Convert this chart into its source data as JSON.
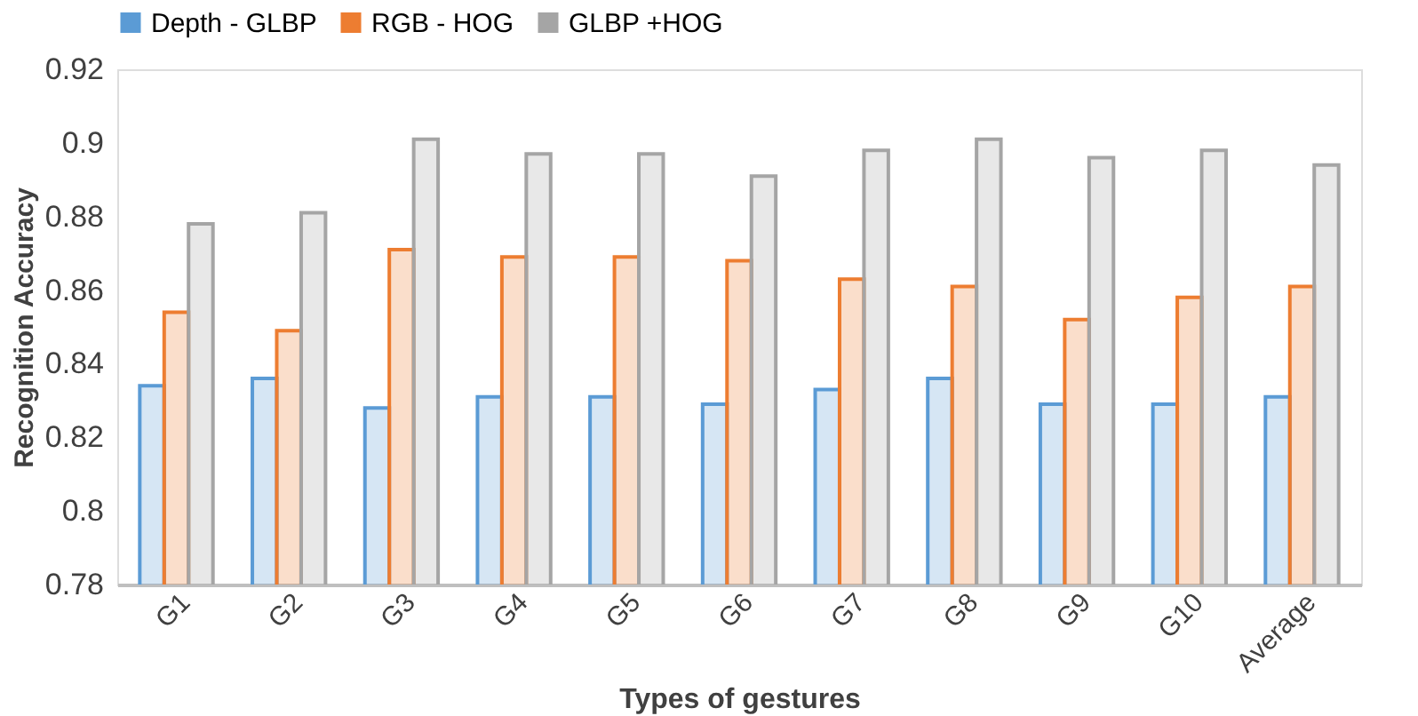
{
  "chart_data": {
    "type": "bar",
    "xlabel": "Types of gestures",
    "ylabel": "Recognition  Accuracy",
    "categories": [
      "G1",
      "G2",
      "G3",
      "G4",
      "G5",
      "G6",
      "G7",
      "G8",
      "G9",
      "G10",
      "Average"
    ],
    "series": [
      {
        "name": "Depth - GLBP",
        "color": "#5b9bd5",
        "values": [
          0.834,
          0.836,
          0.828,
          0.831,
          0.831,
          0.829,
          0.833,
          0.836,
          0.829,
          0.829,
          0.831
        ]
      },
      {
        "name": "RGB - HOG",
        "color": "#ed7d31",
        "values": [
          0.854,
          0.849,
          0.871,
          0.869,
          0.869,
          0.868,
          0.863,
          0.861,
          0.852,
          0.858,
          0.861
        ]
      },
      {
        "name": "GLBP +HOG",
        "color": "#a5a5a5",
        "values": [
          0.878,
          0.881,
          0.901,
          0.897,
          0.897,
          0.891,
          0.898,
          0.901,
          0.896,
          0.898,
          0.894
        ]
      }
    ],
    "ylim": [
      0.78,
      0.92
    ],
    "yticks": [
      0.78,
      0.8,
      0.82,
      0.84,
      0.86,
      0.88,
      0.9,
      0.92
    ],
    "grid": false,
    "legend": "top"
  }
}
